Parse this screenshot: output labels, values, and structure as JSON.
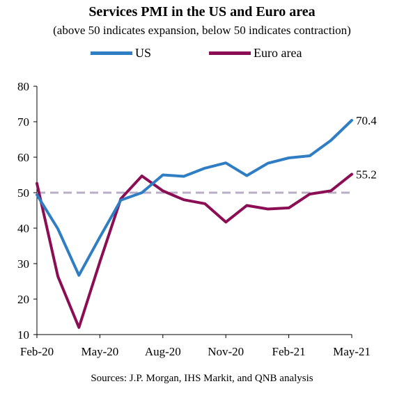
{
  "chart_data": {
    "type": "line",
    "title": "Services PMI in the US and Euro area",
    "subtitle": "(above 50 indicates expansion, below 50 indicates contraction)",
    "x": [
      "Feb-20",
      "Mar-20",
      "Apr-20",
      "May-20",
      "Jun-20",
      "Jul-20",
      "Aug-20",
      "Sep-20",
      "Oct-20",
      "Nov-20",
      "Dec-20",
      "Jan-21",
      "Feb-21",
      "Mar-21",
      "Apr-21",
      "May-21"
    ],
    "x_tick_labels": [
      "Feb-20",
      "May-20",
      "Aug-20",
      "Nov-20",
      "Feb-21",
      "May-21"
    ],
    "ylim": [
      10,
      80
    ],
    "y_ticks": [
      10,
      20,
      30,
      40,
      50,
      60,
      70,
      80
    ],
    "reference_line": {
      "y": 50,
      "style": "dashed",
      "color": "#b8aec6"
    },
    "series": [
      {
        "name": "US",
        "color": "#2f7ec4",
        "values": [
          49.4,
          39.8,
          26.7,
          37.5,
          47.9,
          50.0,
          55.0,
          54.6,
          56.9,
          58.4,
          54.8,
          58.3,
          59.8,
          60.4,
          64.7,
          70.4
        ]
      },
      {
        "name": "Euro area",
        "color": "#8b0e55",
        "values": [
          52.6,
          26.4,
          12.0,
          30.5,
          48.3,
          54.7,
          50.5,
          48.0,
          46.9,
          41.7,
          46.4,
          45.4,
          45.7,
          49.6,
          50.5,
          55.2
        ]
      }
    ],
    "end_labels": [
      "70.4",
      "55.2"
    ],
    "legend_position": "top"
  },
  "source": "Sources: J.P. Morgan, IHS Markit, and QNB analysis"
}
